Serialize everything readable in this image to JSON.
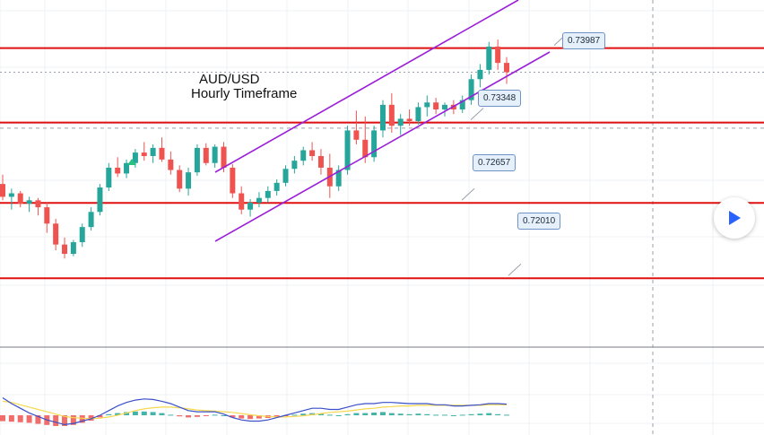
{
  "chart_data": {
    "type": "candlestick",
    "title": "AUD/USD",
    "subtitle": "Hourly Timeframe",
    "levels": [
      0.73987,
      0.73348,
      0.72657,
      0.7201
    ],
    "level_labels": [
      "0.73987",
      "0.73348",
      "0.72657",
      "0.72010"
    ],
    "level_color": "#e01010",
    "channel_color": "#9b1fd8",
    "up_color": "#26a69a",
    "down_color": "#ef5350",
    "ylim": [
      0.7145,
      0.744
    ],
    "candles": [
      [
        0.7282,
        0.729,
        0.7268,
        0.7271
      ],
      [
        0.7271,
        0.7278,
        0.726,
        0.7274
      ],
      [
        0.7274,
        0.7276,
        0.7262,
        0.7265
      ],
      [
        0.7265,
        0.7271,
        0.7258,
        0.7268
      ],
      [
        0.7268,
        0.727,
        0.7255,
        0.7262
      ],
      [
        0.7262,
        0.7266,
        0.724,
        0.7248
      ],
      [
        0.7248,
        0.7252,
        0.7225,
        0.723
      ],
      [
        0.723,
        0.7236,
        0.7218,
        0.7222
      ],
      [
        0.7222,
        0.7234,
        0.722,
        0.7232
      ],
      [
        0.7232,
        0.7248,
        0.7228,
        0.7245
      ],
      [
        0.7245,
        0.7262,
        0.7242,
        0.7258
      ],
      [
        0.7258,
        0.7282,
        0.7255,
        0.7279
      ],
      [
        0.7279,
        0.73,
        0.7276,
        0.7296
      ],
      [
        0.7296,
        0.7305,
        0.7288,
        0.7291
      ],
      [
        0.7291,
        0.7303,
        0.7287,
        0.73
      ],
      [
        0.73,
        0.7312,
        0.7296,
        0.7309
      ],
      [
        0.7309,
        0.7318,
        0.7302,
        0.7306
      ],
      [
        0.7306,
        0.7316,
        0.73,
        0.7313
      ],
      [
        0.7313,
        0.7322,
        0.7301,
        0.7303
      ],
      [
        0.7303,
        0.731,
        0.729,
        0.7294
      ],
      [
        0.7294,
        0.7298,
        0.7275,
        0.7278
      ],
      [
        0.7278,
        0.7296,
        0.7272,
        0.7292
      ],
      [
        0.7292,
        0.7316,
        0.7289,
        0.7313
      ],
      [
        0.7313,
        0.7317,
        0.7298,
        0.73
      ],
      [
        0.73,
        0.7316,
        0.7296,
        0.7314
      ],
      [
        0.7314,
        0.7318,
        0.7292,
        0.7296
      ],
      [
        0.7296,
        0.7299,
        0.727,
        0.7274
      ],
      [
        0.7274,
        0.728,
        0.7256,
        0.726
      ],
      [
        0.726,
        0.7269,
        0.7254,
        0.7266
      ],
      [
        0.7266,
        0.7275,
        0.7262,
        0.727
      ],
      [
        0.727,
        0.728,
        0.7266,
        0.7276
      ],
      [
        0.7276,
        0.7286,
        0.7272,
        0.7283
      ],
      [
        0.7283,
        0.7298,
        0.728,
        0.7295
      ],
      [
        0.7295,
        0.7306,
        0.7291,
        0.7302
      ],
      [
        0.7302,
        0.7314,
        0.7298,
        0.7311
      ],
      [
        0.7311,
        0.7318,
        0.7302,
        0.7306
      ],
      [
        0.7306,
        0.7312,
        0.729,
        0.7296
      ],
      [
        0.7296,
        0.7308,
        0.727,
        0.728
      ],
      [
        0.728,
        0.7298,
        0.7276,
        0.7294
      ],
      [
        0.7294,
        0.7332,
        0.729,
        0.7328
      ],
      [
        0.7328,
        0.7345,
        0.7316,
        0.732
      ],
      [
        0.732,
        0.734,
        0.73,
        0.7305
      ],
      [
        0.7305,
        0.7332,
        0.7301,
        0.7328
      ],
      [
        0.7328,
        0.7354,
        0.7322,
        0.735
      ],
      [
        0.735,
        0.736,
        0.7326,
        0.7332
      ],
      [
        0.7332,
        0.7342,
        0.7324,
        0.7338
      ],
      [
        0.7338,
        0.7346,
        0.7332,
        0.7336
      ],
      [
        0.7336,
        0.7352,
        0.7333,
        0.7348
      ],
      [
        0.7348,
        0.7358,
        0.734,
        0.7352
      ],
      [
        0.7352,
        0.7356,
        0.7342,
        0.7346
      ],
      [
        0.7346,
        0.7352,
        0.734,
        0.735
      ],
      [
        0.735,
        0.7354,
        0.7342,
        0.7346
      ],
      [
        0.7346,
        0.7358,
        0.7343,
        0.7354
      ],
      [
        0.7354,
        0.7376,
        0.735,
        0.7372
      ],
      [
        0.7372,
        0.7385,
        0.7365,
        0.738
      ],
      [
        0.738,
        0.7404,
        0.7376,
        0.74
      ],
      [
        0.74,
        0.7406,
        0.738,
        0.7386
      ],
      [
        0.7386,
        0.7391,
        0.7368,
        0.7378
      ]
    ],
    "macd": {
      "histogram": [
        -0.55,
        -0.6,
        -0.65,
        -0.7,
        -0.8,
        -0.9,
        -1.0,
        -1.0,
        -0.9,
        -0.7,
        -0.5,
        -0.2,
        0.1,
        0.2,
        0.3,
        0.35,
        0.35,
        0.3,
        0.2,
        0.05,
        -0.1,
        -0.2,
        -0.15,
        -0.05,
        0.05,
        0.0,
        -0.2,
        -0.3,
        -0.35,
        -0.3,
        -0.25,
        -0.15,
        -0.05,
        0.05,
        0.15,
        0.2,
        0.15,
        0.05,
        0.0,
        0.1,
        0.2,
        0.2,
        0.25,
        0.3,
        0.2,
        0.15,
        0.1,
        0.15,
        0.1,
        0.05,
        0.05,
        0.0,
        0.05,
        0.1,
        0.15,
        0.2,
        0.1,
        0.05
      ],
      "macd_line": [
        1.5,
        1.0,
        0.6,
        0.2,
        -0.1,
        -0.4,
        -0.6,
        -0.8,
        -0.7,
        -0.5,
        -0.3,
        0.0,
        0.4,
        0.8,
        1.1,
        1.3,
        1.4,
        1.35,
        1.2,
        1.0,
        0.7,
        0.4,
        0.3,
        0.3,
        0.3,
        0.1,
        -0.2,
        -0.4,
        -0.5,
        -0.5,
        -0.4,
        -0.2,
        0.0,
        0.2,
        0.4,
        0.6,
        0.6,
        0.5,
        0.5,
        0.7,
        0.9,
        1.0,
        1.0,
        1.1,
        1.1,
        1.05,
        1.0,
        1.0,
        1.0,
        0.9,
        0.9,
        0.8,
        0.8,
        0.85,
        0.9,
        1.0,
        1.0,
        0.95
      ],
      "signal_line": [
        1.2,
        1.1,
        0.9,
        0.7,
        0.5,
        0.3,
        0.1,
        -0.1,
        -0.2,
        -0.25,
        -0.3,
        -0.25,
        -0.15,
        0.0,
        0.2,
        0.4,
        0.55,
        0.65,
        0.7,
        0.7,
        0.65,
        0.55,
        0.45,
        0.4,
        0.35,
        0.3,
        0.25,
        0.15,
        0.05,
        -0.05,
        -0.1,
        -0.15,
        -0.15,
        -0.1,
        -0.05,
        0.05,
        0.15,
        0.25,
        0.3,
        0.35,
        0.45,
        0.55,
        0.6,
        0.7,
        0.75,
        0.8,
        0.8,
        0.85,
        0.85,
        0.85,
        0.85,
        0.85,
        0.85,
        0.85,
        0.85,
        0.9,
        0.9,
        0.9
      ]
    }
  }
}
